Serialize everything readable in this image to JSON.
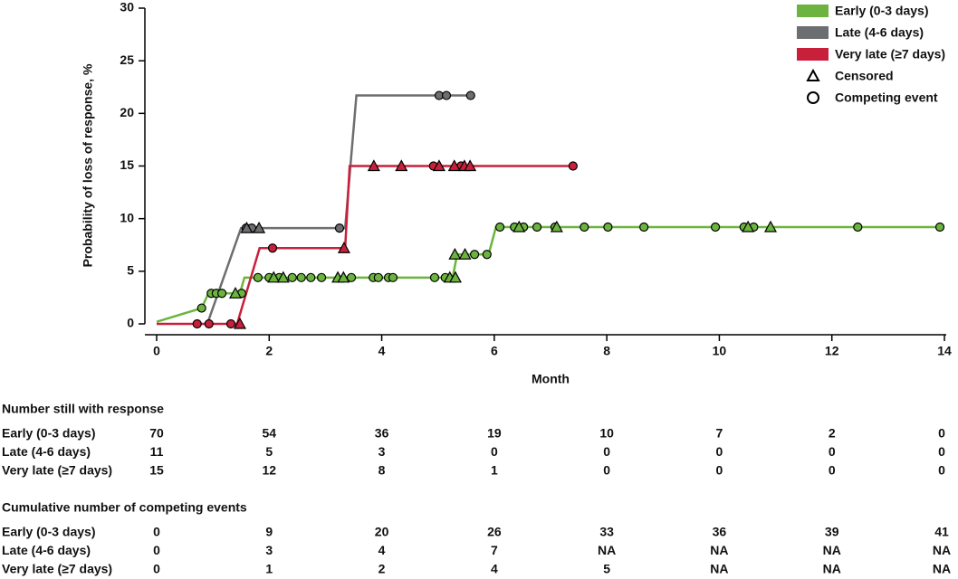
{
  "chart_data": {
    "type": "cumulative-incidence",
    "x_label": "Month",
    "y_label": "Probability of loss of response, %",
    "xlim": [
      0,
      14
    ],
    "xticks": [
      0,
      2,
      4,
      6,
      8,
      10,
      12,
      14
    ],
    "ylim": [
      0,
      30
    ],
    "yticks": [
      0,
      5,
      10,
      15,
      20,
      25,
      30
    ],
    "marker_legend": [
      "Censored",
      "Competing event"
    ],
    "series": [
      {
        "name": "Early (0-3 days)",
        "color": "#6cb43f",
        "x": [
          0,
          0.8,
          0.92,
          1.48,
          1.56,
          5.26,
          5.34,
          5.9,
          6.03,
          14
        ],
        "values": [
          0.2,
          1.5,
          2.9,
          2.9,
          4.4,
          4.4,
          6.6,
          6.6,
          9.2,
          9.2
        ],
        "censored_x": [
          1.4,
          2.08,
          2.25,
          3.22,
          3.32,
          5.21,
          5.31,
          5.3,
          5.48,
          6.44,
          7.11,
          10.51,
          10.91
        ],
        "censored_y": [
          2.9,
          4.4,
          4.4,
          4.4,
          4.4,
          4.4,
          4.4,
          6.6,
          6.6,
          9.2,
          9.2,
          9.2,
          9.2
        ],
        "competing_x": [
          0.8,
          0.97,
          1.06,
          1.16,
          1.51,
          1.8,
          2.0,
          2.18,
          2.41,
          2.57,
          2.74,
          2.93,
          3.46,
          3.85,
          3.94,
          4.12,
          4.2,
          4.94,
          5.13,
          5.65,
          5.87,
          6.1,
          6.36,
          6.52,
          6.76,
          7.08,
          7.6,
          8.02,
          8.66,
          9.93,
          10.44,
          10.61,
          12.46,
          13.92
        ],
        "competing_y": [
          1.5,
          2.9,
          2.9,
          2.9,
          2.9,
          4.4,
          4.4,
          4.4,
          4.4,
          4.4,
          4.4,
          4.4,
          4.4,
          4.4,
          4.4,
          4.4,
          4.4,
          4.4,
          4.4,
          6.6,
          6.6,
          9.2,
          9.2,
          9.2,
          9.2,
          9.2,
          9.2,
          9.2,
          9.2,
          9.2,
          9.2,
          9.2,
          9.2,
          9.2
        ]
      },
      {
        "name": "Late (4-6 days)",
        "color": "#6d6e71",
        "x": [
          0.9,
          1.5,
          3.35,
          3.55,
          5.6
        ],
        "values": [
          0,
          9.1,
          9.1,
          21.7,
          21.7
        ],
        "censored_x": [
          1.6,
          1.82
        ],
        "censored_y": [
          9.1,
          9.1
        ],
        "competing_x": [
          1.59,
          1.69,
          3.25,
          5.02,
          5.15,
          5.58
        ],
        "competing_y": [
          9.1,
          9.1,
          9.1,
          21.7,
          21.7,
          21.7
        ]
      },
      {
        "name": "Very late (≥7 days)",
        "color": "#c8203b",
        "x": [
          0,
          1.43,
          1.83,
          3.35,
          3.43,
          7.4
        ],
        "values": [
          0,
          0,
          7.2,
          7.2,
          15,
          15
        ],
        "censored_x": [
          1.48,
          3.33,
          3.86,
          4.35,
          5.02,
          5.29,
          5.47,
          5.57
        ],
        "censored_y": [
          0,
          7.2,
          15,
          15,
          15,
          15,
          15,
          15
        ],
        "competing_x": [
          0.72,
          0.93,
          1.32,
          2.06,
          4.92,
          5.41,
          7.4
        ],
        "competing_y": [
          0,
          0,
          0,
          7.2,
          15,
          15,
          15
        ]
      }
    ],
    "tables": [
      {
        "title": "Number still with response",
        "rows": [
          [
            70,
            54,
            36,
            19,
            10,
            7,
            2,
            0
          ],
          [
            11,
            5,
            3,
            0,
            0,
            0,
            0,
            0
          ],
          [
            15,
            12,
            8,
            1,
            0,
            0,
            0,
            0
          ]
        ]
      },
      {
        "title": "Cumulative number of competing events",
        "rows": [
          [
            0,
            9,
            20,
            26,
            33,
            36,
            39,
            41
          ],
          [
            0,
            3,
            4,
            7,
            "NA",
            "NA",
            "NA",
            "NA"
          ],
          [
            0,
            1,
            2,
            4,
            5,
            "NA",
            "NA",
            "NA"
          ]
        ]
      }
    ]
  }
}
